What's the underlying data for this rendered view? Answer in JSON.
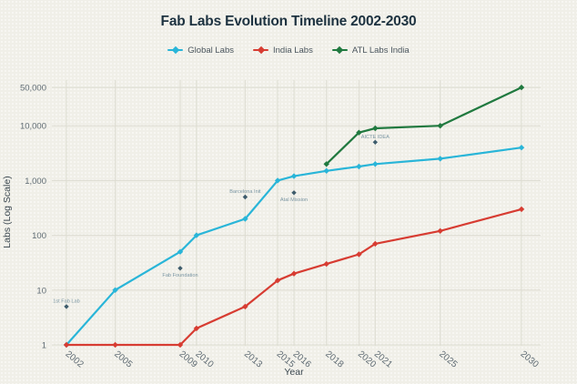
{
  "chart_data": {
    "type": "line",
    "title": "Fab Labs Evolution Timeline 2002-2030",
    "x_axis": {
      "label": "Year",
      "ticks": [
        2002,
        2005,
        2009,
        2010,
        2013,
        2015,
        2016,
        2018,
        2020,
        2021,
        2025,
        2030
      ],
      "range": [
        2001.4,
        2031.2
      ]
    },
    "y_axis": {
      "label": "Labs (Log Scale)",
      "scale": "log",
      "ticks": [
        1,
        10,
        100,
        1000,
        10000,
        50000
      ],
      "tick_labels": [
        "1",
        "10",
        "100",
        "1,000",
        "10,000",
        "50,000"
      ],
      "range": [
        1,
        70000
      ]
    },
    "grid": true,
    "legend": {
      "position": "top-center"
    },
    "series": [
      {
        "name": "Global Labs",
        "color": "#29b5d8",
        "marker": "diamond",
        "points": [
          [
            2002,
            1
          ],
          [
            2005,
            10
          ],
          [
            2009,
            50
          ],
          [
            2010,
            100
          ],
          [
            2013,
            200
          ],
          [
            2015,
            1000
          ],
          [
            2016,
            1200
          ],
          [
            2018,
            1500
          ],
          [
            2020,
            1800
          ],
          [
            2021,
            2000
          ],
          [
            2025,
            2500
          ],
          [
            2030,
            4000
          ]
        ]
      },
      {
        "name": "India Labs",
        "color": "#d73c32",
        "marker": "diamond",
        "points": [
          [
            2002,
            1
          ],
          [
            2005,
            1
          ],
          [
            2009,
            1
          ],
          [
            2010,
            2
          ],
          [
            2013,
            5
          ],
          [
            2015,
            15
          ],
          [
            2016,
            20
          ],
          [
            2018,
            30
          ],
          [
            2020,
            45
          ],
          [
            2021,
            70
          ],
          [
            2025,
            120
          ],
          [
            2030,
            300
          ]
        ]
      },
      {
        "name": "ATL Labs India",
        "color": "#20793f",
        "marker": "diamond",
        "points": [
          [
            2018,
            2000
          ],
          [
            2020,
            7500
          ],
          [
            2021,
            9000
          ],
          [
            2025,
            10000
          ],
          [
            2030,
            50000
          ]
        ]
      }
    ],
    "annotations": [
      {
        "label": "1st Fab Lab",
        "year": 2002,
        "value": 5,
        "label_position": "above"
      },
      {
        "label": "Fab Foundation",
        "year": 2009,
        "value": 25,
        "label_position": "below"
      },
      {
        "label": "Barcelona Init",
        "year": 2013,
        "value": 500,
        "label_position": "above"
      },
      {
        "label": "Atal Mission",
        "year": 2016,
        "value": 600,
        "label_position": "below"
      },
      {
        "label": "AICTE IDEA",
        "year": 2021,
        "value": 5000,
        "label_position": "above"
      }
    ],
    "colors": {
      "background": "#f0efe8",
      "grid": "#dddcd1",
      "tick": "#5f6b73",
      "axis_title": "#3c4850",
      "title": "#1d3240",
      "annotation_marker": "#3e5c6c",
      "annotation_text": "#7b96a3"
    }
  }
}
